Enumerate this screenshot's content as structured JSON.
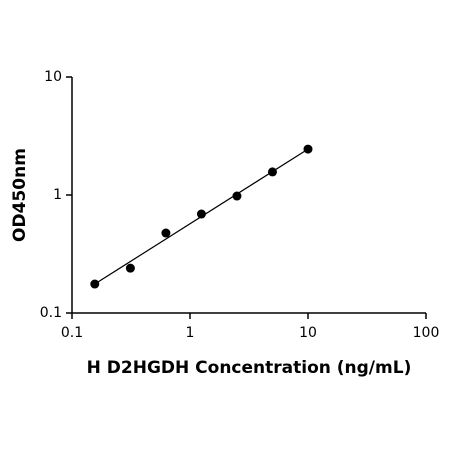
{
  "chart_data": {
    "type": "scatter",
    "x_label": "H D2HGDH Concentration (ng/mL)",
    "y_label": "OD450nm",
    "xscale": "log",
    "yscale": "log",
    "xlim": [
      0.1,
      100
    ],
    "ylim": [
      0.1,
      10
    ],
    "xticks": [
      0.1,
      1,
      10,
      100
    ],
    "yticks": [
      0.1,
      1,
      10
    ],
    "color": "#000000",
    "x": [
      0.156,
      0.3125,
      0.625,
      1.25,
      2.5,
      5,
      10
    ],
    "values": [
      0.176,
      0.24,
      0.476,
      0.69,
      0.98,
      1.57,
      2.45
    ],
    "fit": {
      "x": [
        0.156,
        10
      ],
      "y": [
        0.176,
        2.45
      ]
    }
  }
}
